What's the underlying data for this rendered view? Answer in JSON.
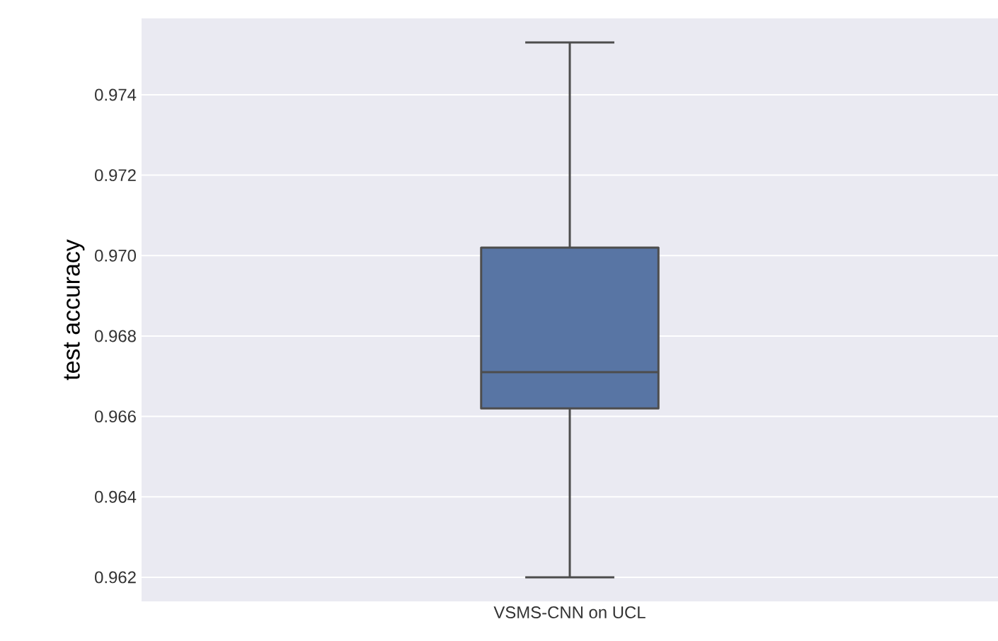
{
  "chart_data": {
    "type": "box",
    "ylabel": "test accuracy",
    "categories": [
      "VSMS-CNN on UCL"
    ],
    "boxes": [
      {
        "low": 0.962,
        "q1": 0.9662,
        "median": 0.9671,
        "q3": 0.9702,
        "high": 0.9753
      }
    ],
    "color": "#5875a4",
    "ylim": [
      0.9614,
      0.9759
    ],
    "yticks": [
      0.962,
      0.964,
      0.966,
      0.968,
      {
        "value": 0.97,
        "label": "0.970"
      },
      0.972,
      0.974
    ],
    "grid": "y"
  }
}
